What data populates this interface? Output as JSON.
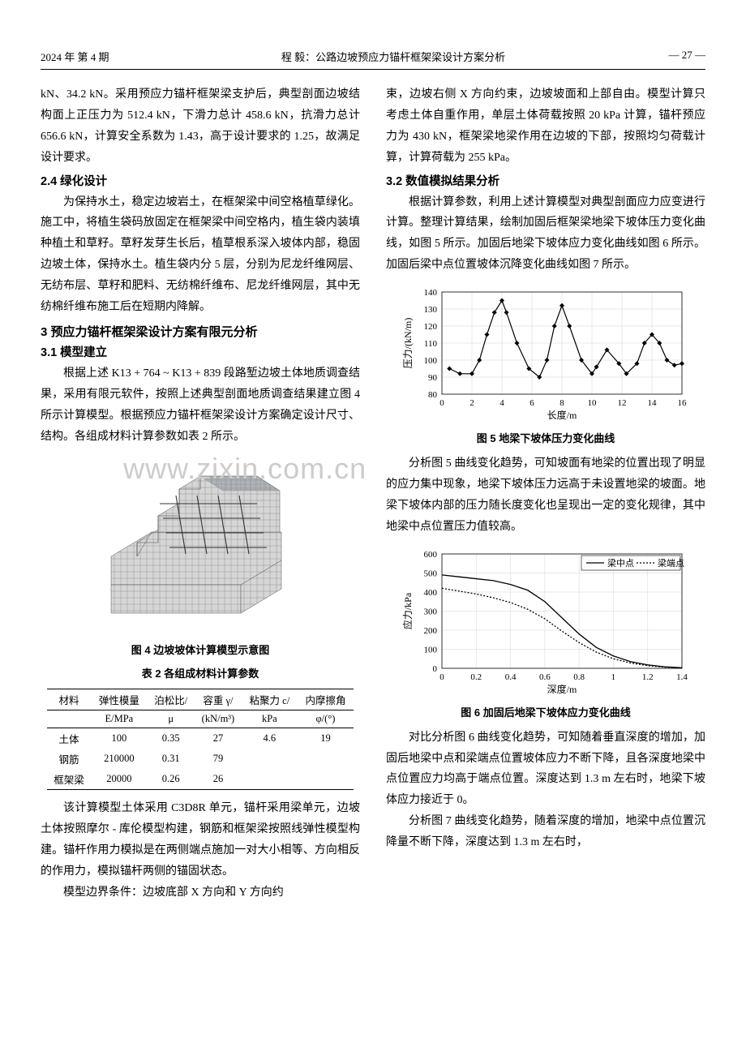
{
  "header": {
    "left": "2024 年  第 4 期",
    "center": "程  毅：公路边坡预应力锚杆框架梁设计方案分析",
    "right": "— 27 —"
  },
  "left_col": {
    "p1": "kN、34.2 kN。采用预应力锚杆框架梁支护后，典型剖面边坡结构面上正压力为 512.4 kN，下滑力总计 458.6 kN，抗滑力总计 656.6 kN，计算安全系数为 1.43，高于设计要求的 1.25，故满足设计要求。",
    "h24": "2.4  绿化设计",
    "p2": "为保持水土，稳定边坡岩土，在框架梁中间空格植草绿化。施工中，将植生袋码放固定在框架梁中间空格内，植生袋内装填种植土和草籽。草籽发芽生长后，植草根系深入坡体内部，稳固边坡土体，保持水土。植生袋内分 5 层，分别为尼龙纤维网层、无纺布层、草籽和肥料、无纺棉纤维布、尼龙纤维网层，其中无纺棉纤维布施工后在短期内降解。",
    "h3": "3  预应力锚杆框架梁设计方案有限元分析",
    "h31": "3.1  模型建立",
    "p3": "根据上述 K13 + 764 ~ K13 + 839 段路堑边坡土体地质调查结果，采用有限元软件，按照上述典型剖面地质调查结果建立图 4 所示计算模型。根据预应力锚杆框架梁设计方案确定设计尺寸、结构。各组成材料计算参数如表 2 所示。",
    "fig4_caption": "图 4  边坡坡体计算模型示意图",
    "tab2_caption": "表 2  各组成材料计算参数",
    "p4": "该计算模型土体采用 C3D8R 单元，锚杆采用梁单元，边坡土体按照摩尔 - 库伦模型构建，钢筋和框架梁按照线弹性模型构建。锚杆作用力模拟是在两侧端点施加一对大小相等、方向相反的作用力，模拟锚杆两侧的锚固状态。",
    "p5": "模型边界条件：边坡底部 X 方向和 Y 方向约",
    "watermark": "www.zixin.com.cn"
  },
  "right_col": {
    "p1": "束，边坡右侧 X 方向约束，边坡坡面和上部自由。模型计算只考虑土体自重作用，单层土体荷载按照 20 kPa 计算，锚杆预应力为 430 kN，框架梁地梁作用在边坡的下部，按照均匀荷载计算，计算荷载为 255 kPa。",
    "h32": "3.2  数值模拟结果分析",
    "p2": "根据计算参数，利用上述计算模型对典型剖面应力应变进行计算。整理计算结果，绘制加固后框架梁地梁下坡体压力变化曲线，如图 5 所示。加固后地梁下坡体应力变化曲线如图 6 所示。加固后梁中点位置坡体沉降变化曲线如图 7 所示。",
    "fig5_caption": "图 5  地梁下坡体压力变化曲线",
    "p3": "分析图 5 曲线变化趋势，可知坡面有地梁的位置出现了明显的应力集中现象，地梁下坡体压力远高于未设置地梁的坡面。地梁下坡体内部的压力随长度变化也呈现出一定的变化规律，其中地梁中点位置压力值较高。",
    "fig6_caption": "图 6  加固后地梁下坡体应力变化曲线",
    "p4": "对比分析图 6 曲线变化趋势，可知随着垂直深度的增加，加固后地梁中点和梁端点位置坡体应力不断下降，且各深度地梁中点位置应力均高于端点位置。深度达到 1.3 m 左右时，地梁下坡体应力接近于 0。",
    "p5": "分析图 7 曲线变化趋势，随着深度的增加，地梁中点位置沉降量不断下降，深度达到 1.3 m 左右时，"
  },
  "table2": {
    "headers": [
      {
        "l1": "材料",
        "l2": ""
      },
      {
        "l1": "弹性模量",
        "l2": "E/MPa"
      },
      {
        "l1": "泊松比/",
        "l2": "μ"
      },
      {
        "l1": "容重 γ/",
        "l2": "(kN/m³)"
      },
      {
        "l1": "粘聚力 c/",
        "l2": "kPa"
      },
      {
        "l1": "内摩擦角",
        "l2": "φ/(°)"
      }
    ],
    "rows": [
      [
        "土体",
        "100",
        "0.35",
        "27",
        "4.6",
        "19"
      ],
      [
        "钢筋",
        "210000",
        "0.31",
        "79",
        "",
        ""
      ],
      [
        "框架梁",
        "20000",
        "0.26",
        "26",
        "",
        ""
      ]
    ]
  },
  "chart5": {
    "type": "line",
    "xlabel": "长度/m",
    "ylabel": "压力/(kN/m)",
    "xlim": [
      0,
      16
    ],
    "xtick_step": 2,
    "ylim": [
      80,
      140
    ],
    "ytick_step": 10,
    "grid_color": "#e0e0e0",
    "line_color": "#000000",
    "marker": "diamond",
    "x": [
      0.5,
      1.2,
      2,
      2.5,
      3,
      3.5,
      4,
      4.3,
      5,
      5.8,
      6.5,
      7,
      7.5,
      8,
      8.5,
      9.3,
      10,
      10.3,
      11,
      11.8,
      12.3,
      13,
      13.5,
      14,
      14.5,
      15,
      15.5,
      16
    ],
    "y": [
      95,
      92,
      92,
      100,
      115,
      128,
      135,
      128,
      110,
      95,
      90,
      100,
      120,
      132,
      120,
      100,
      92,
      96,
      106,
      98,
      92,
      98,
      110,
      115,
      110,
      100,
      97,
      98
    ]
  },
  "chart6": {
    "type": "line",
    "xlabel": "深度/m",
    "ylabel": "应力/kPa",
    "xlim": [
      0,
      1.4
    ],
    "xtick_step": 0.2,
    "ylim": [
      0,
      600
    ],
    "ytick_step": 100,
    "grid_color": "#e0e0e0",
    "series": [
      {
        "name": "梁中点",
        "style": "solid",
        "color": "#000000",
        "x": [
          0,
          0.1,
          0.2,
          0.3,
          0.4,
          0.5,
          0.6,
          0.7,
          0.8,
          0.9,
          1.0,
          1.1,
          1.2,
          1.3,
          1.4
        ],
        "y": [
          490,
          480,
          470,
          460,
          440,
          410,
          350,
          265,
          180,
          110,
          65,
          35,
          18,
          8,
          3
        ]
      },
      {
        "name": "梁端点",
        "style": "dashed",
        "color": "#000000",
        "x": [
          0,
          0.1,
          0.2,
          0.3,
          0.4,
          0.5,
          0.6,
          0.7,
          0.8,
          0.9,
          1.0,
          1.1,
          1.2,
          1.3,
          1.4
        ],
        "y": [
          420,
          405,
          390,
          370,
          345,
          310,
          260,
          195,
          135,
          85,
          50,
          28,
          14,
          6,
          2
        ]
      }
    ]
  }
}
